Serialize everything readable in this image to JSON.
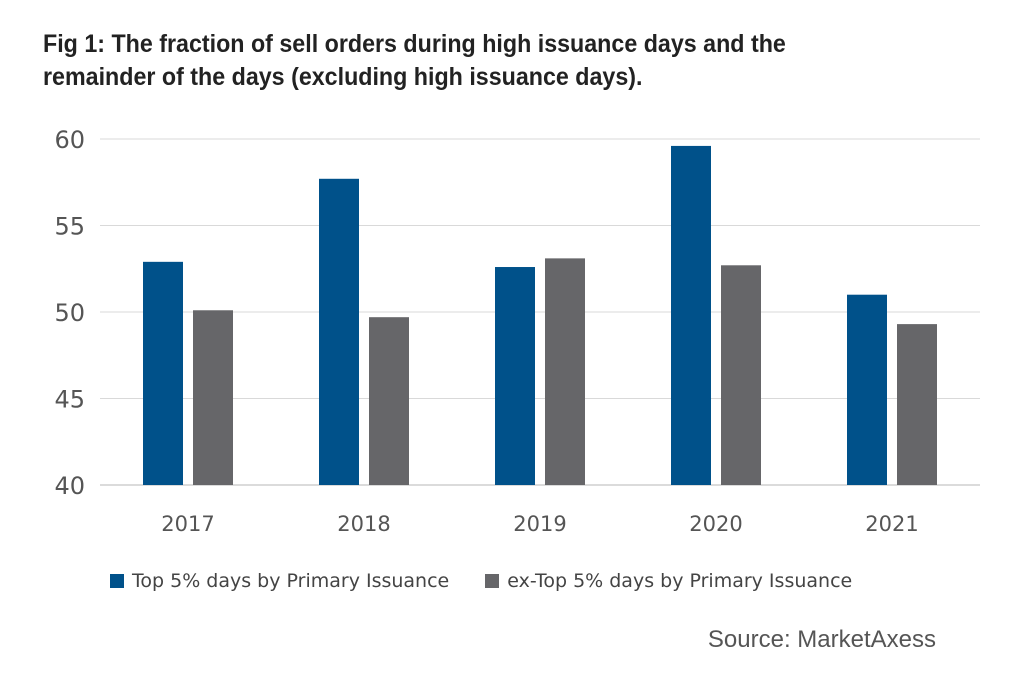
{
  "title": "Fig 1: The fraction of sell orders during high issuance days and the remainder of the days (excluding high issuance days).",
  "source": "Source: MarketAxess",
  "chart_data": {
    "type": "bar",
    "categories": [
      "2017",
      "2018",
      "2019",
      "2020",
      "2021"
    ],
    "series": [
      {
        "name": "Top 5% days by Primary Issuance",
        "color": "#00518a",
        "values": [
          52.9,
          57.7,
          52.6,
          59.6,
          51.0
        ]
      },
      {
        "name": "ex-Top 5% days by Primary Issuance",
        "color": "#666669",
        "values": [
          50.1,
          49.7,
          53.1,
          52.7,
          49.3
        ]
      }
    ],
    "ylim": [
      40,
      60
    ],
    "yticks": [
      40,
      45,
      50,
      55,
      60
    ],
    "grid": true,
    "legend": "bottom"
  }
}
